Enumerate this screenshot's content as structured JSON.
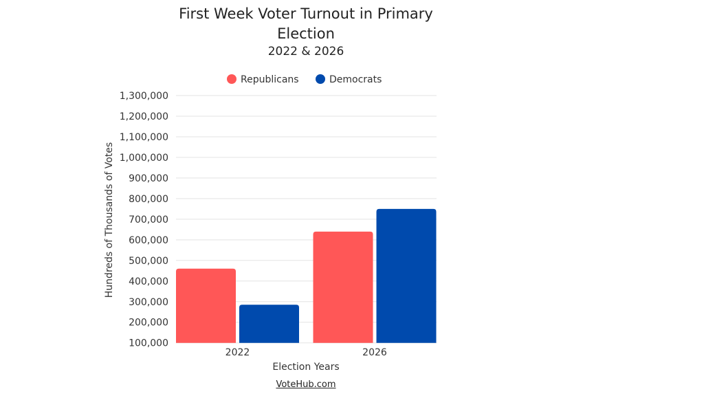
{
  "chart_data": {
    "type": "bar",
    "title": "First Week Voter Turnout in Primary Election",
    "subtitle": "2022 & 2026",
    "xlabel": "Election Years",
    "ylabel": "Hundreds of Thousands of Votes",
    "categories": [
      "2022",
      "2026"
    ],
    "series": [
      {
        "name": "Republicans",
        "color": "#ff5757",
        "values": [
          460000,
          640000
        ]
      },
      {
        "name": "Democrats",
        "color": "#004aad",
        "values": [
          285000,
          750000
        ]
      }
    ],
    "ylim": [
      100000,
      1300000
    ],
    "yticks": [
      "100,000",
      "200,000",
      "300,000",
      "400,000",
      "500,000",
      "600,000",
      "700,000",
      "800,000",
      "900,000",
      "1,000,000",
      "1,100,000",
      "1,200,000",
      "1,300,000"
    ],
    "grid": true,
    "legend": "top"
  },
  "source": "VoteHub.com"
}
